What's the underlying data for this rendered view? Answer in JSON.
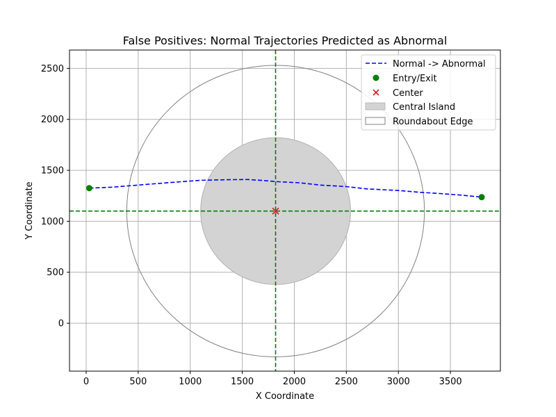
{
  "chart_data": {
    "type": "line",
    "title": "False Positives: Normal Trajectories Predicted as Abnormal",
    "xlabel": "X Coordinate",
    "ylabel": "Y Coordinate",
    "xlim": [
      -160,
      3980
    ],
    "ylim": [
      -470,
      2680
    ],
    "xticks": [
      0,
      500,
      1000,
      1500,
      2000,
      2500,
      3000,
      3500
    ],
    "yticks": [
      0,
      500,
      1000,
      1500,
      2000,
      2500
    ],
    "grid": true,
    "legend_position": "upper right",
    "center": {
      "x": 1820,
      "y": 1100
    },
    "central_island_radius": 720,
    "roundabout_radius": 1430,
    "colors": {
      "trajectory": "#0000ff",
      "entry_exit": "#008000",
      "center": "#d62728",
      "guides": "#008000",
      "island_fill": "#d3d3d3",
      "island_edge": "#b0b0b0",
      "edge": "#808080",
      "grid": "#b0b0b0"
    },
    "series": [
      {
        "name": "Normal -> Abnormal",
        "style": "dashed",
        "x": [
          30,
          250,
          500,
          800,
          1100,
          1350,
          1550,
          1700,
          1850,
          2050,
          2250,
          2500,
          2700,
          3000,
          3200,
          3400,
          3600,
          3800
        ],
        "y": [
          1325,
          1335,
          1355,
          1380,
          1402,
          1408,
          1410,
          1400,
          1388,
          1378,
          1355,
          1340,
          1318,
          1302,
          1285,
          1272,
          1257,
          1237
        ]
      }
    ],
    "entry_exit_points": [
      {
        "x": 30,
        "y": 1325
      },
      {
        "x": 3800,
        "y": 1237
      }
    ],
    "legend": [
      {
        "label": "Normal -> Abnormal",
        "kind": "dashed-line"
      },
      {
        "label": "Entry/Exit",
        "kind": "dot"
      },
      {
        "label": "Center",
        "kind": "x-marker"
      },
      {
        "label": "Central Island",
        "kind": "filled-patch"
      },
      {
        "label": "Roundabout Edge",
        "kind": "outline-patch"
      }
    ]
  }
}
